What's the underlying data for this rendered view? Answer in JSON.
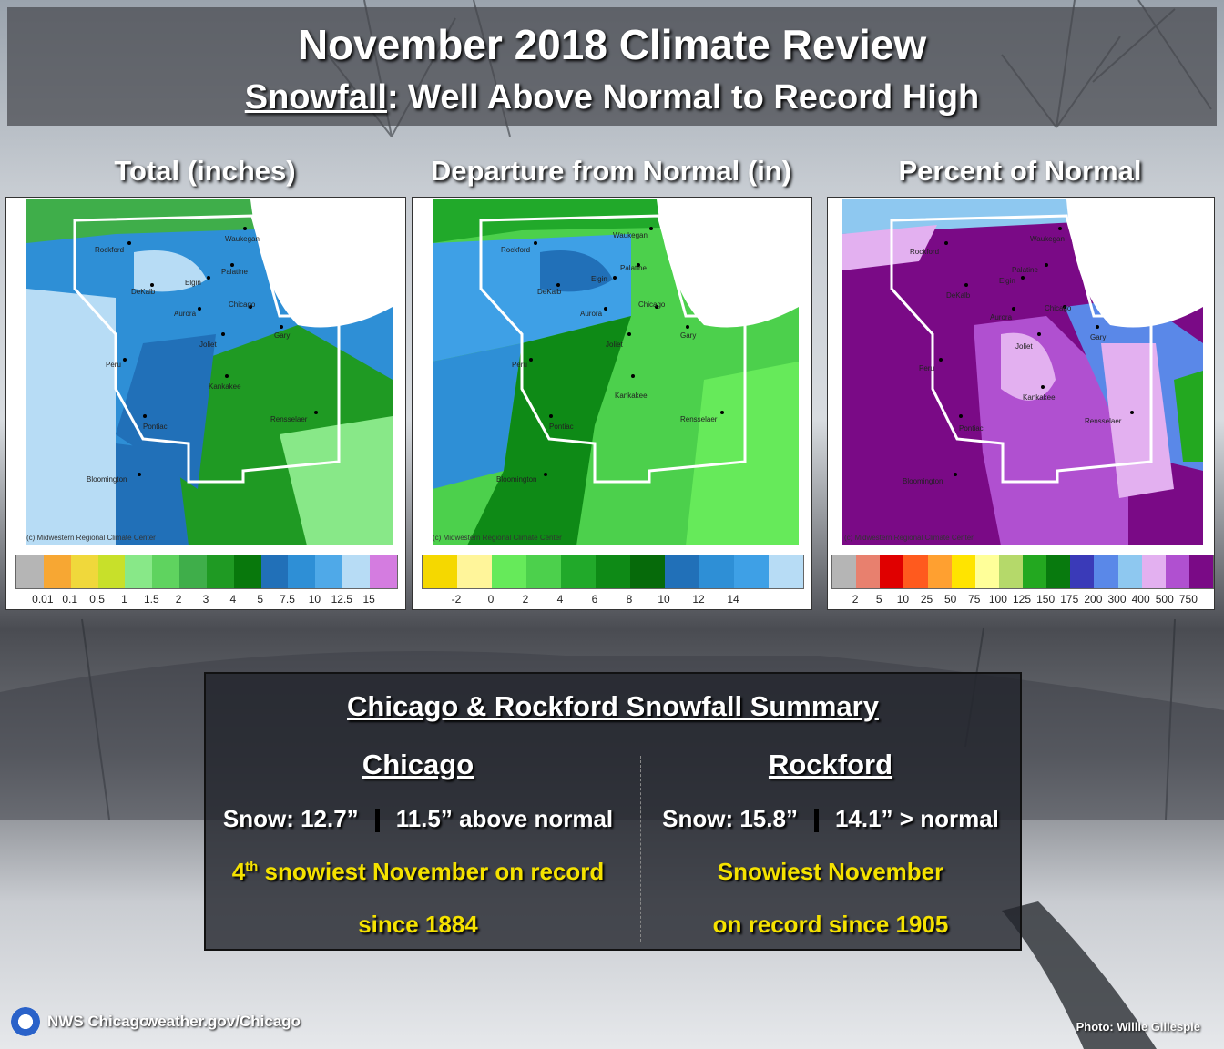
{
  "header": {
    "title": "November 2018 Climate Review",
    "subtitle_underlined": "Snowfall",
    "subtitle_rest": ": Well Above Normal to Record High"
  },
  "panels": [
    {
      "title": "Total (inches)",
      "credit": "(c) Midwestern Regional Climate Center",
      "colorbar_colors": [
        "#b5b5b5",
        "#f7a733",
        "#f0d83b",
        "#c8e02a",
        "#88e888",
        "#5fd35f",
        "#3fae4a",
        "#1f9a23",
        "#08780c",
        "#2170b8",
        "#2e8fd6",
        "#4fa9e8",
        "#b7dcf5",
        "#d47ce0"
      ],
      "ticks": [
        "0.01",
        "0.1",
        "0.5",
        "1",
        "1.5",
        "2",
        "3",
        "4",
        "5",
        "7.5",
        "10",
        "12.5",
        "15"
      ],
      "cities": [
        "Rockford",
        "Waukegan",
        "Palatine",
        "Elgin",
        "DeKalb",
        "Chicago",
        "Aurora",
        "Joliet",
        "Gary",
        "Peru",
        "Kankakee",
        "Pontiac",
        "Rensselaer",
        "Bloomington"
      ]
    },
    {
      "title": "Departure from Normal (in)",
      "credit": "(c) Midwestern Regional Climate Center",
      "colorbar_colors": [
        "#f5d800",
        "#fff59a",
        "#66ea5a",
        "#4cd04c",
        "#21a92a",
        "#0e8a16",
        "#066a0a",
        "#2170b8",
        "#2e8fd6",
        "#3ea0e6",
        "#b7dcf5"
      ],
      "ticks": [
        "-2",
        "0",
        "2",
        "4",
        "6",
        "8",
        "10",
        "12",
        "14"
      ],
      "cities": [
        "Rockford",
        "Waukegan",
        "Palatine",
        "Elgin",
        "DeKalb",
        "Chicago",
        "Aurora",
        "Joliet",
        "Gary",
        "Peru",
        "Kankakee",
        "Pontiac",
        "Rensselaer",
        "Bloomington"
      ]
    },
    {
      "title": "Percent of Normal",
      "credit": "(c) Midwestern Regional Climate Center",
      "colorbar_colors": [
        "#b5b5b5",
        "#e8806e",
        "#e00000",
        "#ff5a1e",
        "#ffa030",
        "#ffe400",
        "#ffff99",
        "#b5d96a",
        "#23a820",
        "#087a0e",
        "#3a3ab8",
        "#5a88e8",
        "#8ec8f0",
        "#e3b0f0",
        "#b050d0",
        "#7a0a86"
      ],
      "ticks": [
        "2",
        "5",
        "10",
        "25",
        "50",
        "75",
        "100",
        "125",
        "150",
        "175",
        "200",
        "300",
        "400",
        "500",
        "750"
      ],
      "cities": [
        "Rockford",
        "Waukegan",
        "Palatine",
        "Elgin",
        "DeKalb",
        "Chicago",
        "Aurora",
        "Joliet",
        "Gary",
        "Peru",
        "Kankakee",
        "Pontiac",
        "Rensselaer",
        "Bloomington"
      ]
    }
  ],
  "summary": {
    "title": "Chicago & Rockford Snowfall Summary",
    "chicago": {
      "name": "Chicago",
      "snow": "Snow:  12.7”",
      "departure": "11.5” above normal",
      "rank_num": "4",
      "rank_sup": "th",
      "rank_rest": " snowiest November on record",
      "since": "since 1884"
    },
    "rockford": {
      "name": "Rockford",
      "snow": "Snow: 15.8”",
      "departure": "14.1” > normal",
      "line1": "Snowiest November",
      "line2": "on record since 1905"
    }
  },
  "footer": {
    "office": "NWS Chicago",
    "url": "weather.gov/Chicago",
    "photo_credit": "Photo: Willie Gillespie"
  }
}
